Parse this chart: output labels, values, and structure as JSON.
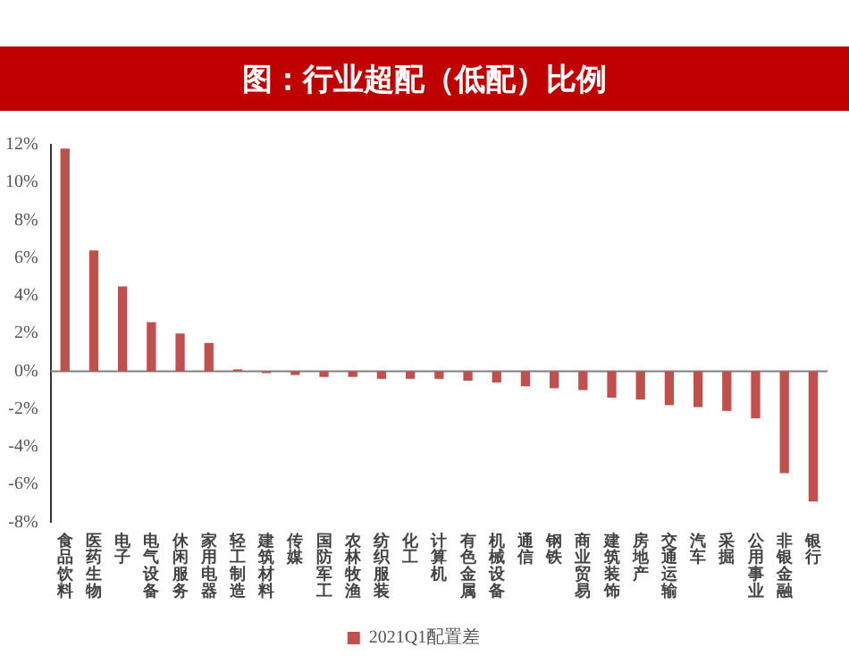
{
  "chart_data": {
    "type": "bar",
    "title": "图：行业超配（低配）比例",
    "categories": [
      "食品饮料",
      "医药生物",
      "电子",
      "电气设备",
      "休闲服务",
      "家用电器",
      "轻工制造",
      "建筑材料",
      "传媒",
      "国防军工",
      "农林牧渔",
      "纺织服装",
      "化工",
      "计算机",
      "有色金属",
      "机械设备",
      "通信",
      "钢铁",
      "商业贸易",
      "建筑装饰",
      "房地产",
      "交通运输",
      "汽车",
      "采掘",
      "公用事业",
      "非银金融",
      "银行"
    ],
    "series": [
      {
        "name": "2021Q1配置差",
        "color": "#c0504d",
        "values": [
          11.8,
          6.4,
          4.5,
          2.6,
          2.0,
          1.5,
          0.1,
          -0.1,
          -0.2,
          -0.3,
          -0.3,
          -0.4,
          -0.4,
          -0.4,
          -0.5,
          -0.6,
          -0.8,
          -0.9,
          -1.0,
          -1.4,
          -1.5,
          -1.8,
          -1.9,
          -2.1,
          -2.5,
          -5.4,
          -6.9
        ]
      }
    ],
    "ylim": [
      -8,
      12
    ],
    "yticks": [
      {
        "value": -8,
        "label": "-8%"
      },
      {
        "value": -6,
        "label": "-6%"
      },
      {
        "value": -4,
        "label": "-4%"
      },
      {
        "value": -2,
        "label": "-2%"
      },
      {
        "value": 0,
        "label": "0%"
      },
      {
        "value": 2,
        "label": "2%"
      },
      {
        "value": 4,
        "label": "4%"
      },
      {
        "value": 6,
        "label": "6%"
      },
      {
        "value": 8,
        "label": "8%"
      },
      {
        "value": 10,
        "label": "10%"
      },
      {
        "value": 12,
        "label": "12%"
      }
    ],
    "legend": "bottom"
  }
}
